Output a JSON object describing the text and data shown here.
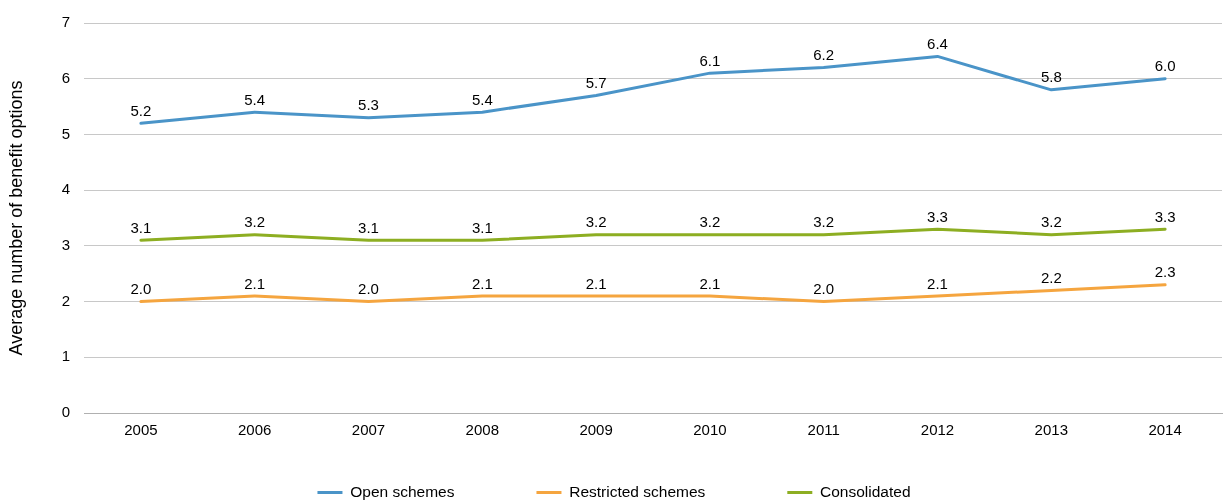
{
  "chart_data": {
    "type": "line",
    "ylabel": "Average number of benefit options",
    "categories": [
      "2005",
      "2006",
      "2007",
      "2008",
      "2009",
      "2010",
      "2011",
      "2012",
      "2013",
      "2014"
    ],
    "series": [
      {
        "name": "Open schemes",
        "color": "#4a94c8",
        "values": [
          5.2,
          5.4,
          5.3,
          5.4,
          5.7,
          6.1,
          6.2,
          6.4,
          5.8,
          6.0
        ],
        "value_labels": [
          "5.2",
          "5.4",
          "5.3",
          "5.4",
          "5.7",
          "6.1",
          "6.2",
          "6.4",
          "5.8",
          "6.0"
        ]
      },
      {
        "name": "Restricted schemes",
        "color": "#f5a53f",
        "values": [
          2.0,
          2.1,
          2.0,
          2.1,
          2.1,
          2.1,
          2.0,
          2.1,
          2.2,
          2.3
        ],
        "value_labels": [
          "2.0",
          "2.1",
          "2.0",
          "2.1",
          "2.1",
          "2.1",
          "2.0",
          "2.1",
          "2.2",
          "2.3"
        ]
      },
      {
        "name": "Consolidated",
        "color": "#8dae22",
        "values": [
          3.1,
          3.2,
          3.1,
          3.1,
          3.2,
          3.2,
          3.2,
          3.3,
          3.2,
          3.3
        ],
        "value_labels": [
          "3.1",
          "3.2",
          "3.1",
          "3.1",
          "3.2",
          "3.2",
          "3.2",
          "3.3",
          "3.2",
          "3.3"
        ]
      }
    ],
    "ylim": [
      0,
      7
    ],
    "yticks": [
      0,
      1,
      2,
      3,
      4,
      5,
      6,
      7
    ],
    "grid": "y",
    "legend": "bottom",
    "marker": "none",
    "line_style": "solid"
  }
}
